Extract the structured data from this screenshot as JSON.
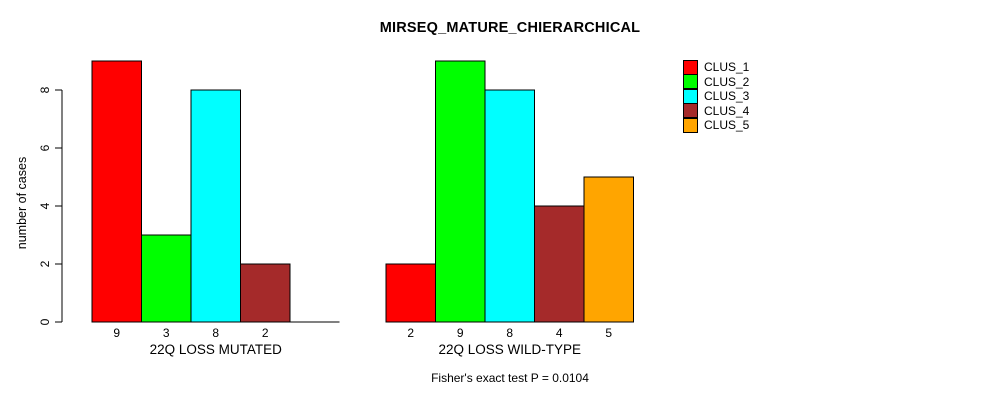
{
  "title": "MIRSEQ_MATURE_CHIERARCHICAL",
  "subtitle": "Fisher's exact test P = 0.0104",
  "ylabel": "number of cases",
  "legend": {
    "items": [
      {
        "label": "CLUS_1",
        "color": "#FF0000"
      },
      {
        "label": "CLUS_2",
        "color": "#00FF00"
      },
      {
        "label": "CLUS_3",
        "color": "#00FFFF"
      },
      {
        "label": "CLUS_4",
        "color": "#A52A2A"
      },
      {
        "label": "CLUS_5",
        "color": "#FFA500"
      }
    ]
  },
  "chart_data": {
    "type": "bar",
    "title": "MIRSEQ_MATURE_CHIERARCHICAL",
    "xlabel": "",
    "ylabel": "number of cases",
    "ylim": [
      0,
      9
    ],
    "yticks": [
      0,
      2,
      4,
      6,
      8
    ],
    "grid": false,
    "legend_position": "right",
    "series_labels": [
      "CLUS_1",
      "CLUS_2",
      "CLUS_3",
      "CLUS_4",
      "CLUS_5"
    ],
    "colors": [
      "#FF0000",
      "#00FF00",
      "#00FFFF",
      "#A52A2A",
      "#FFA500"
    ],
    "groups": [
      {
        "label": "22Q LOSS MUTATED",
        "values": [
          9,
          3,
          8,
          2,
          0
        ],
        "bar_labels": [
          "9",
          "3",
          "8",
          "2",
          ""
        ]
      },
      {
        "label": "22Q LOSS WILD-TYPE",
        "values": [
          2,
          9,
          8,
          4,
          5
        ],
        "bar_labels": [
          "2",
          "9",
          "8",
          "4",
          "5"
        ]
      }
    ],
    "annotation": "Fisher's exact test P = 0.0104"
  }
}
